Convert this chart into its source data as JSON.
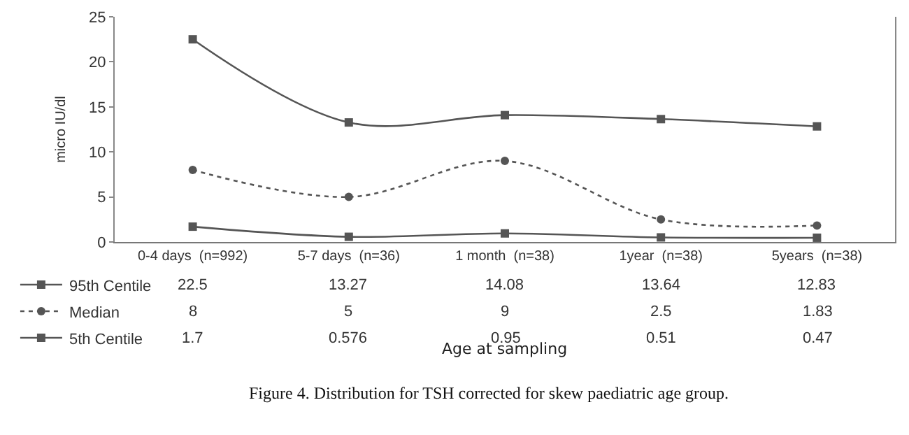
{
  "chart_data": {
    "type": "line",
    "categories": [
      "0-4 days  (n=992)",
      "5-7 days  (n=36)",
      "1 month  (n=38)",
      "1year  (n=38)",
      "5years  (n=38)"
    ],
    "series": [
      {
        "name": "95th Centile",
        "color": "#555555",
        "values": [
          22.5,
          13.27,
          14.08,
          13.64,
          12.83
        ],
        "marker": "square",
        "line_style": "solid"
      },
      {
        "name": "Median",
        "color": "#555555",
        "values": [
          8,
          5,
          9,
          2.5,
          1.83
        ],
        "marker": "circle",
        "line_style": "dotted"
      },
      {
        "name": "5th Centile",
        "color": "#555555",
        "values": [
          1.7,
          0.576,
          0.95,
          0.51,
          0.47
        ],
        "marker": "square",
        "line_style": "solid"
      }
    ],
    "ylim": [
      0,
      25
    ],
    "yticks": [
      0,
      5,
      10,
      15,
      20,
      25
    ],
    "ylabel": "micro IU/dl",
    "grid": false,
    "legend": "bottom left",
    "data_labels": true,
    "annotations": [
      "Age at sampling",
      "Figure 4. Distribution for TSH corrected for skew paediatric age group."
    ]
  }
}
